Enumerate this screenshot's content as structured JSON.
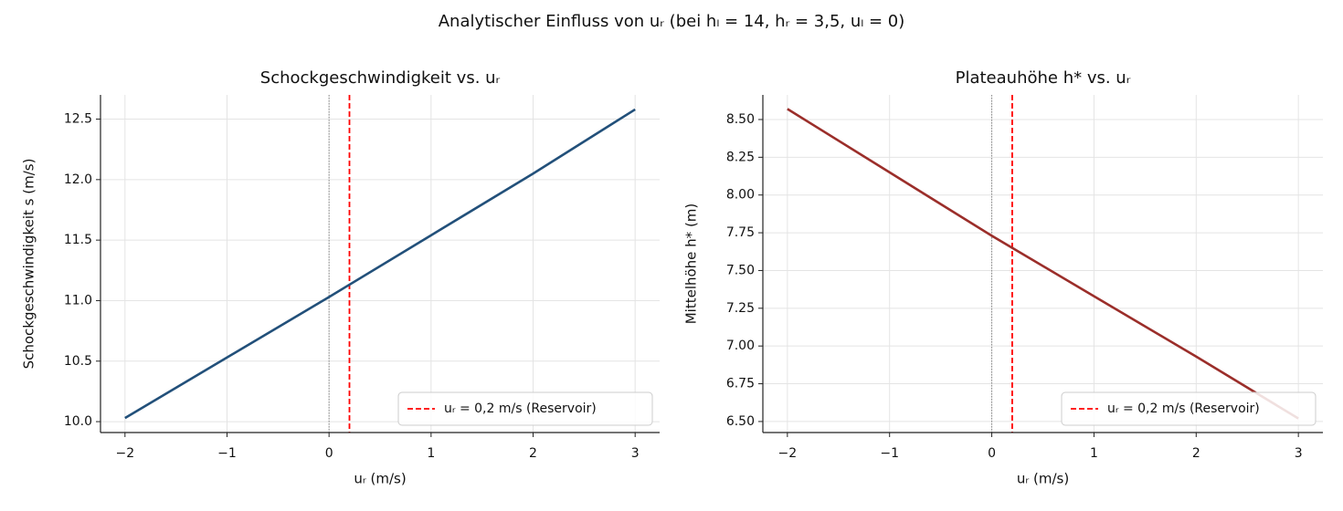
{
  "title": "Analytischer Einfluss von uᵣ (bei hₗ = 14, hᵣ = 3,5, uₗ = 0)",
  "chart_data": [
    {
      "type": "line",
      "title": "Schockgeschwindigkeit vs. uᵣ",
      "xlabel": "uᵣ (m/s)",
      "ylabel": "Schockgeschwindigkeit s (m/s)",
      "x": [
        -2,
        -1,
        0,
        1,
        2,
        3
      ],
      "series": [
        {
          "color": "#22507a",
          "values": [
            10.03,
            10.53,
            11.03,
            11.54,
            12.05,
            12.58
          ]
        }
      ],
      "xlim": [
        -2.24,
        3.24
      ],
      "ylim": [
        9.91,
        12.7
      ],
      "xticks": [
        {
          "value": -2,
          "label": "−2"
        },
        {
          "value": -1,
          "label": "−1"
        },
        0,
        1,
        2,
        3
      ],
      "yticks": [
        {
          "value": 10,
          "label": "10.0"
        },
        10.5,
        {
          "value": 11,
          "label": "11.0"
        },
        11.5,
        {
          "value": 12,
          "label": "12.0"
        },
        12.5
      ],
      "grid": true,
      "vlines": [
        {
          "x": 0,
          "color": "#888888",
          "style": "dotted"
        },
        {
          "x": 0.2,
          "color": "#ff0000",
          "style": "dashed",
          "label": "uᵣ = 0,2 m/s (Reservoir)"
        }
      ],
      "legend": "lower right"
    },
    {
      "type": "line",
      "title": "Plateauhöhe h* vs. uᵣ",
      "xlabel": "uᵣ (m/s)",
      "ylabel": "Mittelhöhe h* (m)",
      "x": [
        -2,
        -1,
        0,
        1,
        2,
        3
      ],
      "series": [
        {
          "color": "#9b2e2a",
          "values": [
            8.57,
            8.15,
            7.73,
            7.33,
            6.93,
            6.52
          ]
        }
      ],
      "xlim": [
        -2.24,
        3.24
      ],
      "ylim": [
        6.427,
        8.663
      ],
      "xticks": [
        {
          "value": -2,
          "label": "−2"
        },
        {
          "value": -1,
          "label": "−1"
        },
        0,
        1,
        2,
        3
      ],
      "yticks": [
        {
          "value": 6.5,
          "label": "6.50"
        },
        6.75,
        {
          "value": 7,
          "label": "7.00"
        },
        7.25,
        {
          "value": 7.5,
          "label": "7.50"
        },
        7.75,
        {
          "value": 8,
          "label": "8.00"
        },
        8.25,
        {
          "value": 8.5,
          "label": "8.50"
        }
      ],
      "grid": true,
      "vlines": [
        {
          "x": 0,
          "color": "#888888",
          "style": "dotted"
        },
        {
          "x": 0.2,
          "color": "#ff0000",
          "style": "dashed",
          "label": "uᵣ = 0,2 m/s (Reservoir)"
        }
      ],
      "legend": "lower right"
    }
  ]
}
